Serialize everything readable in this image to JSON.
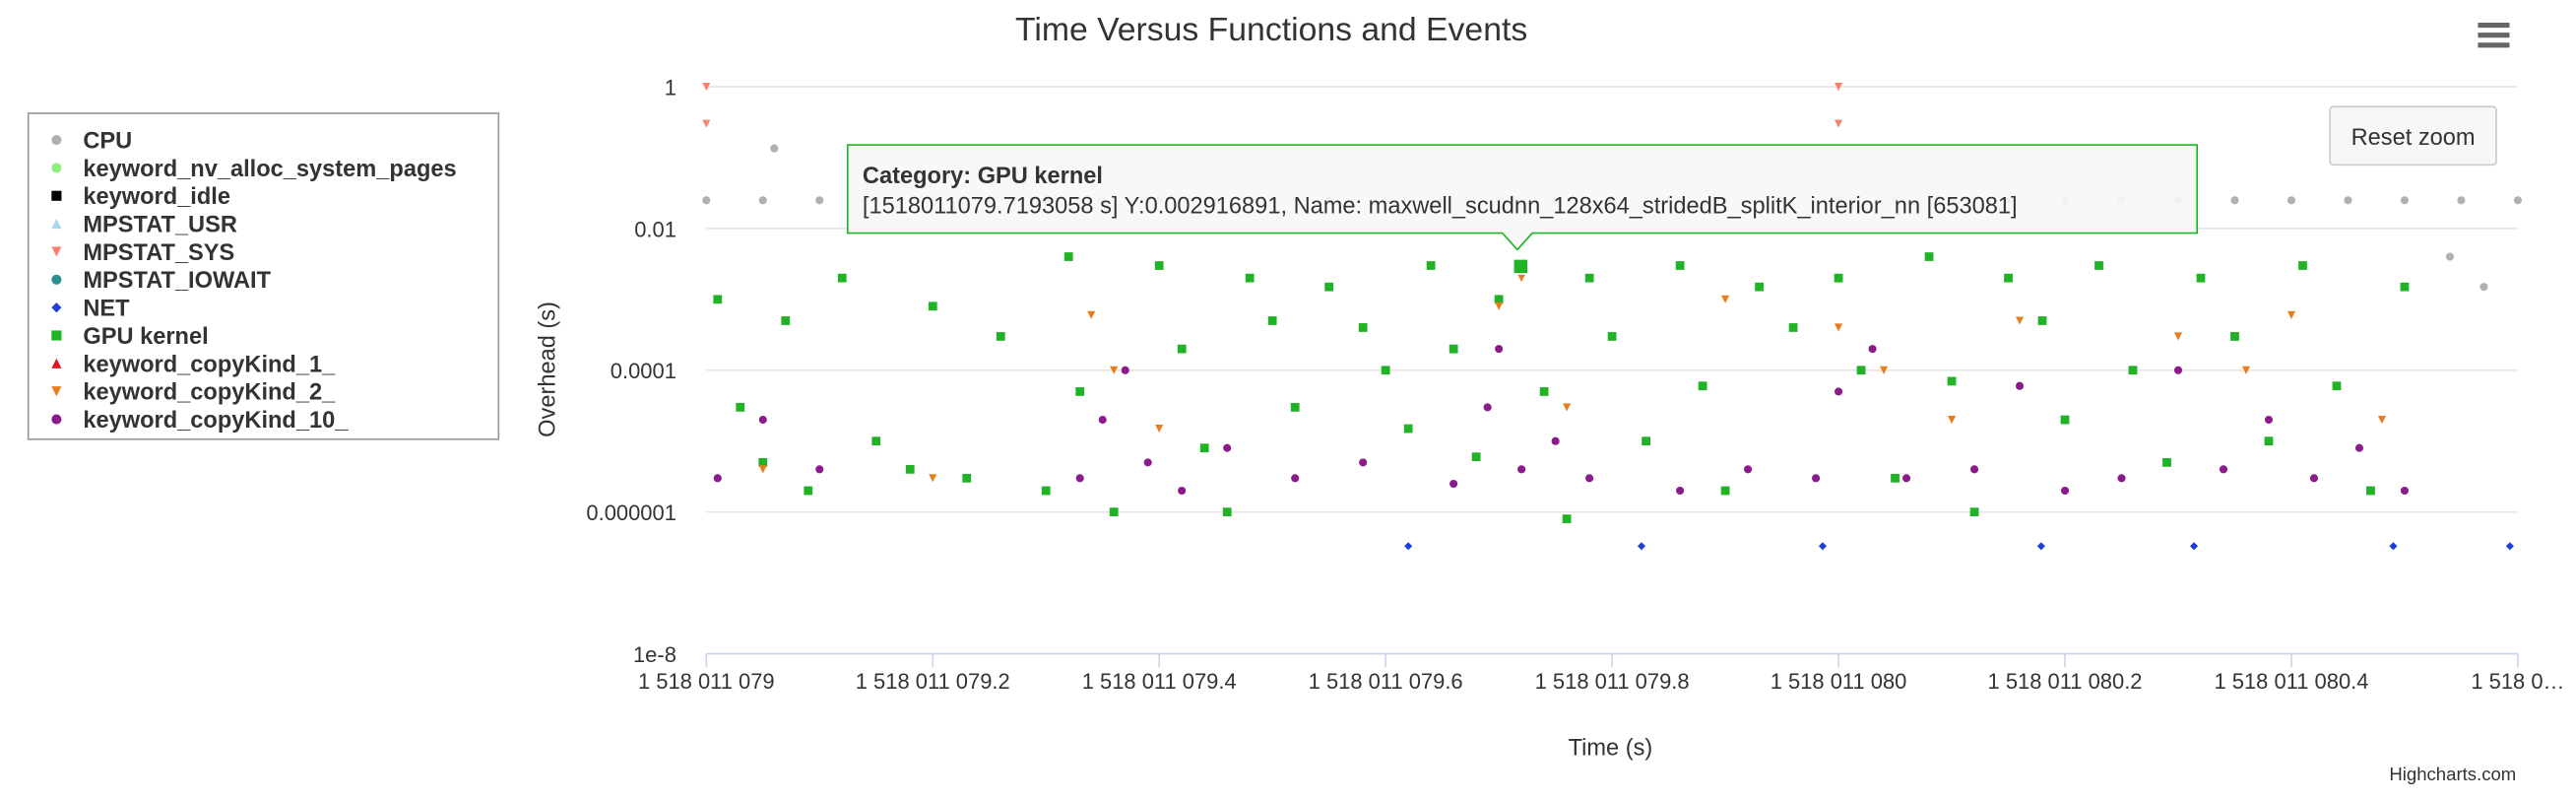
{
  "chart_data": {
    "type": "scatter",
    "title": "Time Versus Functions and Events",
    "x_label": "Time (s)",
    "y_label": "Overhead (s)",
    "yscale": "log",
    "grid": true,
    "legend": "left",
    "xlim": [
      1518011079,
      1518011080.6
    ],
    "ylim": [
      1e-08,
      1
    ],
    "xticks": [
      {
        "value": 1518011079,
        "label": "1 518 011 079"
      },
      {
        "value": 1518011079.2,
        "label": "1 518 011 079.2"
      },
      {
        "value": 1518011079.4,
        "label": "1 518 011 079.4"
      },
      {
        "value": 1518011079.6,
        "label": "1 518 011 079.6"
      },
      {
        "value": 1518011079.8,
        "label": "1 518 011 079.8"
      },
      {
        "value": 1518011080,
        "label": "1 518 011 080"
      },
      {
        "value": 1518011080.2,
        "label": "1 518 011 080.2"
      },
      {
        "value": 1518011080.4,
        "label": "1 518 011 080.4"
      },
      {
        "value": 1518011080.6,
        "label": "1 518 0…"
      }
    ],
    "yticks": [
      1,
      0.01,
      0.0001,
      {
        "value": 1e-06,
        "label": "0.000001"
      },
      {
        "value": 1e-08,
        "label": "1e-8"
      }
    ],
    "series": [
      {
        "name": "CPU",
        "color": "#b0b0b0",
        "marker": "circle",
        "x": [
          1518011079.0,
          1518011079.05,
          1518011079.06,
          1518011079.1,
          1518011079.15,
          1518011079.2,
          1518011079.25,
          1518011079.3,
          1518011079.35,
          1518011079.4,
          1518011079.45,
          1518011079.5,
          1518011079.55,
          1518011079.6,
          1518011079.65,
          1518011079.7,
          1518011079.75,
          1518011079.8,
          1518011079.85,
          1518011079.9,
          1518011079.95,
          1518011080.0,
          1518011080.05,
          1518011080.1,
          1518011080.15,
          1518011080.2,
          1518011080.25,
          1518011080.3,
          1518011080.35,
          1518011080.4,
          1518011080.45,
          1518011080.5,
          1518011080.54,
          1518011080.55,
          1518011080.57,
          1518011080.6
        ],
        "values": [
          0.025,
          0.025,
          0.135,
          0.025,
          0.025,
          0.025,
          0.025,
          0.025,
          0.025,
          0.025,
          0.025,
          0.025,
          0.025,
          0.025,
          0.025,
          0.025,
          0.025,
          0.025,
          0.025,
          0.025,
          0.025,
          0.025,
          0.025,
          0.025,
          0.025,
          0.025,
          0.025,
          0.025,
          0.025,
          0.025,
          0.025,
          0.025,
          0.004,
          0.025,
          0.0015,
          0.025
        ]
      },
      {
        "name": "keyword_nv_alloc_system_pages",
        "color": "#90ed7d",
        "marker": "circle",
        "x": [],
        "values": []
      },
      {
        "name": "keyword_idle",
        "color": "#000000",
        "marker": "square",
        "x": [],
        "values": []
      },
      {
        "name": "MPSTAT_USR",
        "color": "#a6d8f0",
        "marker": "triangle",
        "x": [],
        "values": []
      },
      {
        "name": "MPSTAT_SYS",
        "color": "#f7836b",
        "marker": "triangle-down",
        "x": [
          1518011079.0,
          1518011079.0,
          1518011080.0,
          1518011080.0
        ],
        "values": [
          1,
          0.3,
          1,
          0.3
        ]
      },
      {
        "name": "MPSTAT_IOWAIT",
        "color": "#2b908f",
        "marker": "circle",
        "x": [],
        "values": []
      },
      {
        "name": "NET",
        "color": "#1f3fd8",
        "marker": "diamond",
        "x": [
          1518011079.62,
          1518011079.826,
          1518011079.986,
          1518011080.179,
          1518011080.314,
          1518011080.49,
          1518011080.593
        ],
        "values": [
          3.3e-07,
          3.3e-07,
          3.3e-07,
          3.3e-07,
          3.3e-07,
          3.3e-07,
          3.3e-07
        ]
      },
      {
        "name": "GPU kernel",
        "color": "#1fb325",
        "marker": "square",
        "x": [
          1518011079.01,
          1518011079.03,
          1518011079.05,
          1518011079.07,
          1518011079.09,
          1518011079.12,
          1518011079.15,
          1518011079.18,
          1518011079.2,
          1518011079.23,
          1518011079.26,
          1518011079.3,
          1518011079.32,
          1518011079.33,
          1518011079.36,
          1518011079.4,
          1518011079.42,
          1518011079.44,
          1518011079.46,
          1518011079.48,
          1518011079.5,
          1518011079.52,
          1518011079.55,
          1518011079.58,
          1518011079.6,
          1518011079.62,
          1518011079.64,
          1518011079.66,
          1518011079.68,
          1518011079.7,
          1518011079.7193058,
          1518011079.74,
          1518011079.76,
          1518011079.78,
          1518011079.8,
          1518011079.83,
          1518011079.86,
          1518011079.88,
          1518011079.9,
          1518011079.93,
          1518011079.96,
          1518011080.0,
          1518011080.02,
          1518011080.05,
          1518011080.08,
          1518011080.1,
          1518011080.12,
          1518011080.15,
          1518011080.18,
          1518011080.2,
          1518011080.23,
          1518011080.26,
          1518011080.29,
          1518011080.32,
          1518011080.35,
          1518011080.38,
          1518011080.41,
          1518011080.44,
          1518011080.47,
          1518011080.5
        ],
        "values": [
          0.001,
          3e-05,
          5e-06,
          0.0005,
          2e-06,
          0.002,
          1e-05,
          4e-06,
          0.0008,
          3e-06,
          0.0003,
          2e-06,
          0.004,
          5e-05,
          1e-06,
          0.003,
          0.0002,
          8e-06,
          1e-06,
          0.002,
          0.0005,
          3e-05,
          0.0015,
          0.0004,
          0.0001,
          1.5e-05,
          0.003,
          0.0002,
          6e-06,
          0.001,
          0.002916891,
          5e-05,
          8e-07,
          0.002,
          0.0003,
          1e-05,
          0.003,
          6e-05,
          2e-06,
          0.0015,
          0.0004,
          0.002,
          0.0001,
          3e-06,
          0.004,
          7e-05,
          1e-06,
          0.002,
          0.0005,
          2e-05,
          0.003,
          0.0001,
          5e-06,
          0.002,
          0.0003,
          1e-05,
          0.003,
          6e-05,
          2e-06,
          0.0015
        ]
      },
      {
        "name": "keyword_copyKind_1_",
        "color": "#e4141b",
        "marker": "triangle",
        "x": [],
        "values": []
      },
      {
        "name": "keyword_copyKind_2_",
        "color": "#e87d1e",
        "marker": "triangle-down",
        "x": [
          1518011079.05,
          1518011079.2,
          1518011079.34,
          1518011079.36,
          1518011079.4,
          1518011079.7,
          1518011079.72,
          1518011079.76,
          1518011079.9,
          1518011080.0,
          1518011080.04,
          1518011080.1,
          1518011080.16,
          1518011080.3,
          1518011080.36,
          1518011080.4,
          1518011080.48
        ],
        "values": [
          4e-06,
          3e-06,
          0.0006,
          0.0001,
          1.5e-05,
          0.0008,
          0.002,
          3e-05,
          0.001,
          0.0004,
          0.0001,
          2e-05,
          0.0005,
          0.0003,
          0.0001,
          0.0006,
          2e-05
        ]
      },
      {
        "name": "keyword_copyKind_10_",
        "color": "#8b1a8b",
        "marker": "circle",
        "x": [
          1518011079.01,
          1518011079.05,
          1518011079.1,
          1518011079.33,
          1518011079.35,
          1518011079.37,
          1518011079.39,
          1518011079.42,
          1518011079.46,
          1518011079.52,
          1518011079.58,
          1518011079.66,
          1518011079.69,
          1518011079.7,
          1518011079.72,
          1518011079.75,
          1518011079.78,
          1518011079.86,
          1518011079.92,
          1518011079.98,
          1518011080.0,
          1518011080.03,
          1518011080.06,
          1518011080.12,
          1518011080.16,
          1518011080.2,
          1518011080.25,
          1518011080.3,
          1518011080.34,
          1518011080.38,
          1518011080.42,
          1518011080.46,
          1518011080.5
        ],
        "values": [
          3e-06,
          2e-05,
          4e-06,
          3e-06,
          2e-05,
          0.0001,
          5e-06,
          2e-06,
          8e-06,
          3e-06,
          5e-06,
          2.5e-06,
          3e-05,
          0.0002,
          4e-06,
          1e-05,
          3e-06,
          2e-06,
          4e-06,
          3e-06,
          5e-05,
          0.0002,
          3e-06,
          4e-06,
          6e-05,
          2e-06,
          3e-06,
          0.0001,
          4e-06,
          2e-05,
          3e-06,
          8e-06,
          2e-06
        ]
      }
    ],
    "tooltip": {
      "title": "Category: GPU kernel",
      "text": "[1518011079.7193058 s] Y:0.002916891, Name: maxwell_scudnn_128x64_stridedB_splitK_interior_nn [653081]",
      "series": 7,
      "point": 30
    },
    "reset_zoom": "Reset zoom",
    "credits": "Highcharts.com"
  }
}
